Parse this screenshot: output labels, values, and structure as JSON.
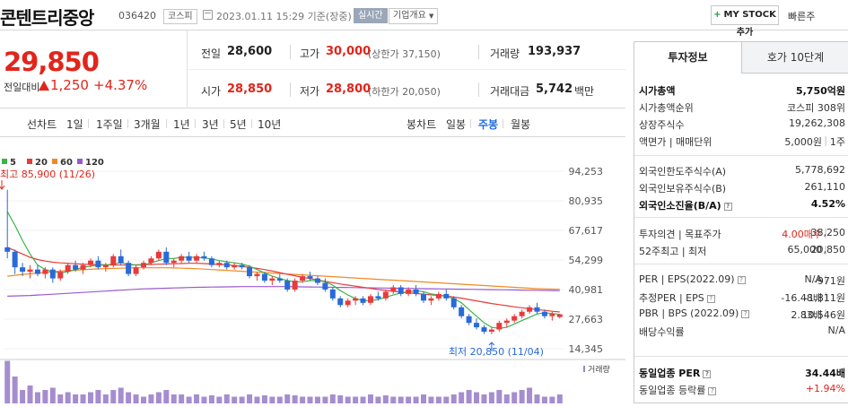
{
  "header": {
    "name": "콘텐트리중앙",
    "code": "036420",
    "market": "코스피",
    "datetime": "2023.01.11 15:29 기준(장중)",
    "realtime": "실시간",
    "company_info": "기업개요",
    "mystock": "MY STOCK 추가",
    "quick": "빠른주"
  },
  "price": {
    "current": "29,850",
    "change_label": "전일대비",
    "change": "1,250",
    "change_pct": "+4.37%",
    "color_up": "#e1251b"
  },
  "summary": {
    "prev_label": "전일",
    "prev": "28,600",
    "high_label": "고가",
    "high": "30,000",
    "upper": "(상한가 37,150)",
    "vol_label": "거래량",
    "vol": "193,937",
    "open_label": "시가",
    "open": "28,850",
    "low_label": "저가",
    "low": "28,800",
    "lower": "(하한가 20,050)",
    "amt_label": "거래대금",
    "amt": "5,742",
    "amt_unit": "백만"
  },
  "periods": {
    "line_label": "선차트",
    "items": [
      "1일",
      "1주일",
      "3개월",
      "1년",
      "3년",
      "5년",
      "10년"
    ],
    "candle_label": "봉차트",
    "candles": [
      "일봉",
      "주봉",
      "월봉"
    ],
    "active_candle": "주봉"
  },
  "chart_data": {
    "type": "candlestick",
    "legend": [
      "5",
      "20",
      "60",
      "120"
    ],
    "legend_colors": [
      "#3ab44a",
      "#e83b3b",
      "#f08a24",
      "#9b59d0"
    ],
    "y_ticks": [
      "94,253",
      "80,935",
      "67,617",
      "54,299",
      "40,981",
      "27,663",
      "14,345"
    ],
    "ylim": [
      14345,
      94253
    ],
    "high_annotation": "최고 85,900 (11/26)",
    "low_annotation": "최저 20,850 (11/04)",
    "volume_label": "거래량",
    "candles": [
      [
        60000,
        85900,
        55000,
        58000
      ],
      [
        58000,
        59000,
        48000,
        51000
      ],
      [
        51000,
        53000,
        47000,
        49000
      ],
      [
        49000,
        52000,
        46000,
        50000
      ],
      [
        50000,
        52000,
        47000,
        48000
      ],
      [
        48000,
        51000,
        46000,
        50000
      ],
      [
        50000,
        51000,
        44000,
        46000
      ],
      [
        46000,
        50000,
        45000,
        49000
      ],
      [
        49000,
        53000,
        48000,
        52000
      ],
      [
        52000,
        54000,
        49000,
        50000
      ],
      [
        50000,
        53000,
        48000,
        52000
      ],
      [
        52000,
        55000,
        51000,
        54000
      ],
      [
        54000,
        56000,
        50000,
        51000
      ],
      [
        51000,
        53000,
        49000,
        52000
      ],
      [
        52000,
        57000,
        51000,
        56000
      ],
      [
        56000,
        59000,
        52000,
        53000
      ],
      [
        53000,
        54000,
        47000,
        48000
      ],
      [
        48000,
        52000,
        47000,
        51000
      ],
      [
        51000,
        54000,
        50000,
        53000
      ],
      [
        53000,
        56000,
        52000,
        55000
      ],
      [
        55000,
        59000,
        54000,
        58000
      ],
      [
        58000,
        60000,
        52000,
        53000
      ],
      [
        53000,
        55000,
        51000,
        54000
      ],
      [
        54000,
        57000,
        53000,
        56000
      ],
      [
        56000,
        58000,
        53000,
        54000
      ],
      [
        54000,
        57000,
        53000,
        56000
      ],
      [
        56000,
        58000,
        54000,
        55000
      ],
      [
        55000,
        56000,
        51000,
        52000
      ],
      [
        52000,
        54000,
        51000,
        53000
      ],
      [
        53000,
        54000,
        50000,
        51000
      ],
      [
        51000,
        53000,
        50000,
        52000
      ],
      [
        52000,
        53000,
        50000,
        51000
      ],
      [
        51000,
        52000,
        46000,
        47000
      ],
      [
        47000,
        49000,
        45000,
        48000
      ],
      [
        48000,
        49000,
        44000,
        45000
      ],
      [
        45000,
        47000,
        43000,
        46000
      ],
      [
        46000,
        48000,
        44000,
        45000
      ],
      [
        45000,
        46000,
        40000,
        41000
      ],
      [
        41000,
        46000,
        40000,
        45000
      ],
      [
        45000,
        48000,
        44000,
        47000
      ],
      [
        47000,
        49000,
        45000,
        46000
      ],
      [
        46000,
        47000,
        43000,
        44000
      ],
      [
        44000,
        46000,
        40000,
        41000
      ],
      [
        41000,
        42000,
        36000,
        37000
      ],
      [
        37000,
        38000,
        33000,
        34000
      ],
      [
        34000,
        37000,
        33000,
        36000
      ],
      [
        36000,
        38000,
        34000,
        37000
      ],
      [
        37000,
        38000,
        34000,
        35000
      ],
      [
        35000,
        39000,
        34000,
        38000
      ],
      [
        38000,
        40000,
        36000,
        37000
      ],
      [
        37000,
        41000,
        36000,
        40000
      ],
      [
        40000,
        43000,
        39000,
        42000
      ],
      [
        42000,
        43000,
        38000,
        39000
      ],
      [
        39000,
        42000,
        38000,
        41000
      ],
      [
        41000,
        43000,
        38000,
        39000
      ],
      [
        39000,
        40000,
        35000,
        36000
      ],
      [
        36000,
        38000,
        34000,
        37000
      ],
      [
        37000,
        40000,
        36000,
        39000
      ],
      [
        39000,
        41000,
        36000,
        37000
      ],
      [
        37000,
        38000,
        32000,
        33000
      ],
      [
        33000,
        34000,
        28000,
        29000
      ],
      [
        29000,
        30000,
        25000,
        26000
      ],
      [
        26000,
        28000,
        23000,
        24000
      ],
      [
        24000,
        25000,
        21000,
        22000
      ],
      [
        22000,
        24000,
        20850,
        23000
      ],
      [
        23000,
        27000,
        22000,
        26000
      ],
      [
        26000,
        28000,
        24000,
        27000
      ],
      [
        27000,
        30000,
        26000,
        29000
      ],
      [
        29000,
        32000,
        28000,
        31000
      ],
      [
        31000,
        34000,
        30000,
        33000
      ],
      [
        33000,
        35000,
        30000,
        31000
      ],
      [
        31000,
        32000,
        28000,
        29000
      ],
      [
        29000,
        31000,
        27000,
        30000
      ],
      [
        28600,
        30000,
        28000,
        29850
      ]
    ],
    "ma": {
      "5": [
        76000,
        70000,
        63000,
        57000,
        52000,
        50000,
        49000,
        48500,
        49000,
        50000,
        51000,
        51500,
        52000,
        52000,
        52500,
        53000,
        52500,
        52000,
        52000,
        53000,
        54000,
        55000,
        55000,
        55500,
        55500,
        55500,
        55200,
        54800,
        54000,
        53500,
        53000,
        52500,
        51500,
        50000,
        48500,
        47000,
        46000,
        45000,
        44500,
        44500,
        45000,
        45000,
        44500,
        43000,
        40500,
        38500,
        37000,
        36000,
        36000,
        36500,
        37500,
        38500,
        39500,
        40000,
        40500,
        40000,
        39000,
        38500,
        38000,
        37000,
        35000,
        32000,
        29000,
        26000,
        24000,
        23500,
        24000,
        25500,
        27000,
        28500,
        30000,
        30500,
        30200,
        29800
      ],
      "20": [
        60000,
        58500,
        57000,
        55500,
        54500,
        53800,
        53300,
        53000,
        52800,
        52600,
        52400,
        52300,
        52200,
        52100,
        52000,
        52000,
        52000,
        52100,
        52200,
        52300,
        52400,
        52500,
        52600,
        52700,
        52800,
        52800,
        52700,
        52500,
        52300,
        52100,
        51800,
        51400,
        51000,
        50500,
        50000,
        49300,
        48600,
        47900,
        47200,
        46500,
        45900,
        45300,
        44700,
        44100,
        43500,
        43000,
        42500,
        42000,
        41500,
        41000,
        40600,
        40200,
        39800,
        39500,
        39200,
        38900,
        38600,
        38300,
        38000,
        37600,
        37100,
        36500,
        35900,
        35300,
        34700,
        34200,
        33700,
        33200,
        32800,
        32400,
        32000,
        31600,
        31200,
        30900
      ],
      "60": [
        47000,
        47400,
        47800,
        48100,
        48400,
        48700,
        49000,
        49300,
        49500,
        49700,
        49900,
        50100,
        50300,
        50400,
        50500,
        50600,
        50700,
        50800,
        50800,
        50800,
        50800,
        50800,
        50700,
        50600,
        50500,
        50400,
        50200,
        50000,
        49800,
        49600,
        49400,
        49200,
        49000,
        48800,
        48600,
        48400,
        48200,
        48000,
        47800,
        47600,
        47400,
        47200,
        47000,
        46800,
        46600,
        46400,
        46200,
        46000,
        45800,
        45600,
        45400,
        45200,
        45000,
        44800,
        44600,
        44400,
        44200,
        44000,
        43800,
        43600,
        43400,
        43200,
        43000,
        42800,
        42600,
        42400,
        42200,
        42000,
        41800,
        41600,
        41400,
        41300,
        41200,
        41100
      ],
      "120": [
        38000,
        38100,
        38200,
        38300,
        38500,
        38700,
        38900,
        39100,
        39300,
        39500,
        39700,
        39900,
        40100,
        40300,
        40500,
        40700,
        40900,
        41100,
        41300,
        41400,
        41500,
        41600,
        41700,
        41800,
        41900,
        42000,
        42050,
        42100,
        42150,
        42200,
        42250,
        42300,
        42300,
        42300,
        42300,
        42300,
        42300,
        42300,
        42250,
        42200,
        42150,
        42100,
        42050,
        42000,
        41950,
        41900,
        41850,
        41800,
        41750,
        41700,
        41650,
        41600,
        41550,
        41500,
        41450,
        41400,
        41350,
        41300,
        41250,
        41200,
        41150,
        41100,
        41050,
        41000,
        40950,
        40900,
        40850,
        40800,
        40750,
        40700,
        40650,
        40600,
        40550,
        40500
      ]
    },
    "volumes": [
      95,
      60,
      30,
      40,
      25,
      30,
      35,
      20,
      25,
      20,
      20,
      25,
      30,
      20,
      30,
      35,
      25,
      20,
      15,
      20,
      25,
      30,
      20,
      20,
      15,
      20,
      15,
      18,
      15,
      20,
      15,
      15,
      20,
      15,
      18,
      15,
      15,
      20,
      18,
      15,
      15,
      15,
      15,
      20,
      18,
      15,
      15,
      15,
      20,
      15,
      18,
      15,
      15,
      15,
      15,
      20,
      15,
      15,
      15,
      20,
      25,
      30,
      25,
      20,
      25,
      30,
      20,
      25,
      30,
      35,
      20,
      15,
      15,
      20
    ]
  },
  "side": {
    "tab_active": "투자정보",
    "tab_other": "호가 10단계",
    "rows1": [
      {
        "k": "시가총액",
        "v": "5,750억원",
        "bold": true
      },
      {
        "k": "시가총액순위",
        "v": "코스피 308위"
      },
      {
        "k": "상장주식수",
        "v": "19,262,308"
      },
      {
        "k": "액면가 | 매매단위",
        "v": "5,000원",
        "v2": "1주"
      }
    ],
    "rows2": [
      {
        "k": "외국인한도주식수(A)",
        "v": "5,778,692"
      },
      {
        "k": "외국인보유주식수(B)",
        "v": "261,110"
      },
      {
        "k": "외국인소진율(B/A)",
        "v": "4.52%",
        "bold": true
      }
    ],
    "rows3": [
      {
        "k": "투자의견 | 목표주가",
        "v": "4.00매수",
        "v2": "38,250"
      },
      {
        "k": "52주최고 | 최저",
        "v": "65,000",
        "v2": "20,850"
      }
    ],
    "rows4": [
      {
        "k": "PER | EPS(2022.09)",
        "v": "N/A",
        "v2": "-971원"
      },
      {
        "k": "추정PER | EPS",
        "v": "-16.48배",
        "v2": "-1,811원"
      },
      {
        "k": "PBR | BPS (2022.09)",
        "v": "2.83배",
        "v2": "10,546원"
      },
      {
        "k": "배당수익률",
        "v": "N/A"
      }
    ],
    "rows5": [
      {
        "k": "동일업종 PER",
        "v": "34.44배",
        "bold": true
      },
      {
        "k": "동일업종 등락률",
        "v": "+1.94%",
        "red": true
      }
    ]
  }
}
